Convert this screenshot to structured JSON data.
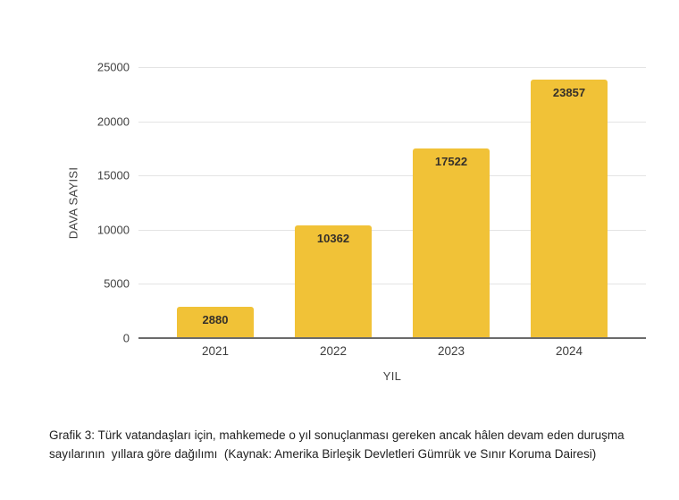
{
  "chart_data": {
    "type": "bar",
    "categories": [
      "2021",
      "2022",
      "2023",
      "2024"
    ],
    "values": [
      2880,
      10362,
      17522,
      23857
    ],
    "data_labels": [
      "2880",
      "10362",
      "17522",
      "23857"
    ],
    "xlabel": "YIL",
    "ylabel": "DAVA SAYISI",
    "ylim": [
      0,
      25000
    ],
    "yticks": [
      0,
      5000,
      10000,
      15000,
      20000,
      25000
    ],
    "grid": "horizontal",
    "legend": "none",
    "bar_color": "#F1C237"
  },
  "caption": {
    "line1": "Grafik 3: Türk vatandaşları için, mahkemede o yıl sonuçlanması gereken ancak hâlen devam eden duruşma",
    "line2": "sayılarının  yıllara göre dağılımı  (Kaynak: Amerika Birleşik Devletleri Gümrük ve Sınır Koruma Dairesi)"
  },
  "colors": {
    "background": "#ffffff",
    "gridline": "#e4e4e4",
    "axis_line": "#6b6b6b",
    "tick_text": "#424242",
    "bar": "#F1C237",
    "bar_value_text": "#35302a",
    "caption_text": "#212121"
  }
}
